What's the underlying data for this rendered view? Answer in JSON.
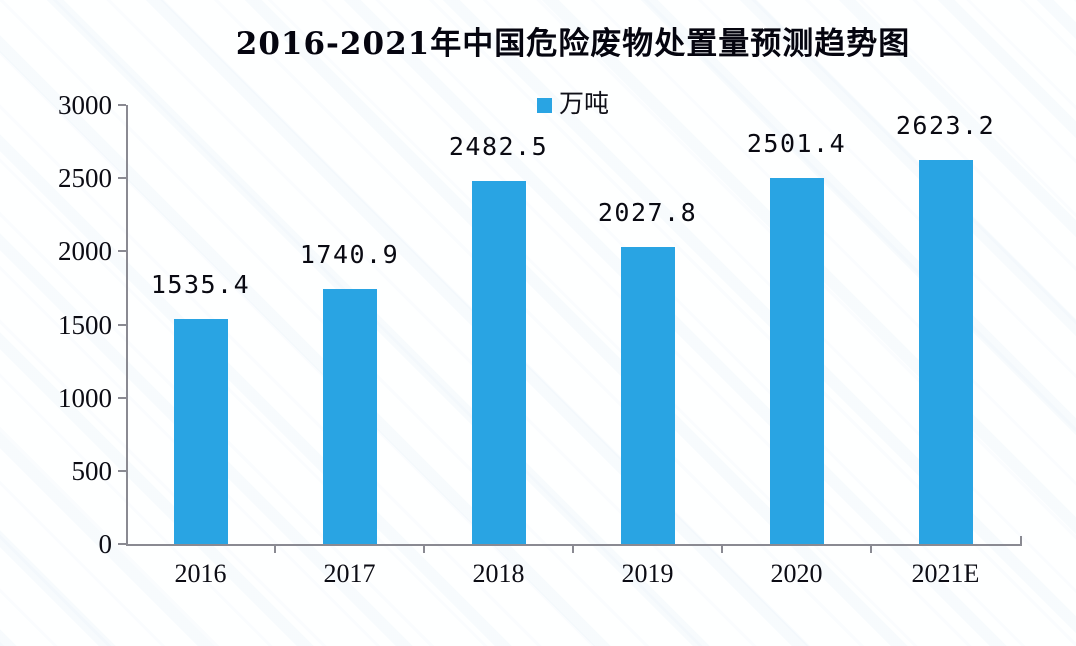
{
  "chart_data": {
    "type": "bar",
    "title": "2016-2021年中国危险废物处置量预测趋势图",
    "legend": [
      "万吨"
    ],
    "legend_position": "top-center",
    "categories": [
      "2016",
      "2017",
      "2018",
      "2019",
      "2020",
      "2021E"
    ],
    "values": [
      1535.4,
      1740.9,
      2482.5,
      2027.8,
      2501.4,
      2623.2
    ],
    "data_labels": [
      "1535.4",
      "1740.9",
      "2482.5",
      "2027.8",
      "2501.4",
      "2623.2"
    ],
    "xlabel": "",
    "ylabel": "",
    "ylim": [
      0,
      3000
    ],
    "y_ticks": [
      0,
      500,
      1000,
      1500,
      2000,
      2500,
      3000
    ],
    "grid": false,
    "colors": {
      "bar": "#29A4E3",
      "axis": "#8a8a92",
      "text": "#0c0c14",
      "background": "#feffff"
    }
  }
}
